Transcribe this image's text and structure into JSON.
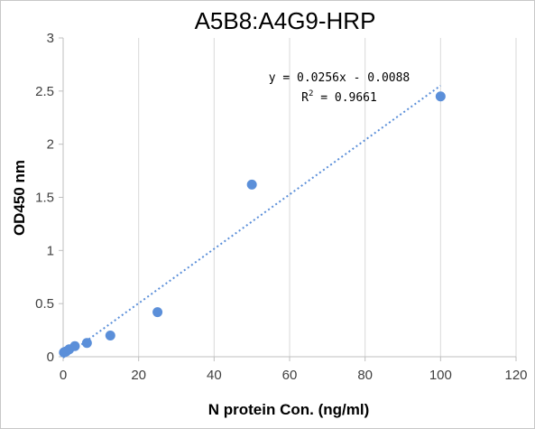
{
  "chart_data": {
    "type": "scatter",
    "title": "A5B8:A4G9-HRP",
    "xlabel": "N protein Con. (ng/ml)",
    "ylabel": "OD450 nm",
    "xlim": [
      0,
      120
    ],
    "ylim": [
      0,
      3
    ],
    "x_ticks": [
      0,
      20,
      40,
      60,
      80,
      100,
      120
    ],
    "y_ticks": [
      0,
      0.5,
      1,
      1.5,
      2,
      2.5,
      3
    ],
    "x_tick_labels": [
      "0",
      "20",
      "40",
      "60",
      "80",
      "100",
      "120"
    ],
    "y_tick_labels": [
      "0",
      "0.5",
      "1",
      "1.5",
      "2",
      "2.5",
      "3"
    ],
    "grid": "vertical",
    "series": [
      {
        "x": [
          0.2,
          0.4,
          0.8,
          1.6,
          3.1,
          6.3,
          12.5,
          25,
          50,
          100
        ],
        "y": [
          0.04,
          0.045,
          0.05,
          0.07,
          0.1,
          0.13,
          0.2,
          0.42,
          1.62,
          2.45
        ],
        "color": "#5b8fd9"
      }
    ],
    "trendline": {
      "type": "linear",
      "slope": 0.0256,
      "intercept": -0.0088,
      "x_range": [
        0,
        100
      ],
      "style": "dotted",
      "color": "#5b8fd9"
    },
    "annotations": {
      "equation": "y = 0.0256x - 0.0088",
      "r2_prefix": "R",
      "r2_superscript": "2",
      "r2_value": " = 0.9661"
    }
  }
}
